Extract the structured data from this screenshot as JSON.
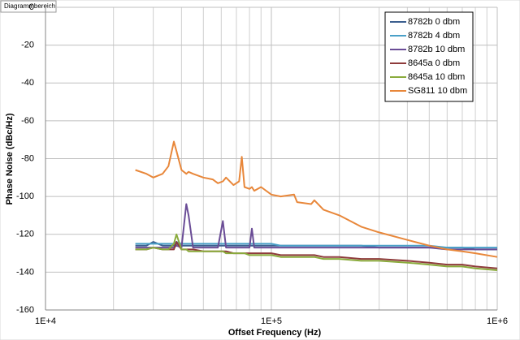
{
  "chart_data": {
    "type": "line",
    "tooltip": "Diagrammbereich",
    "xlabel": "Offset Frequency (Hz)",
    "ylabel": "Phase Noise (dBc/Hz)",
    "xscale": "log",
    "grid": true,
    "legend": "upper right",
    "xlim": [
      10000,
      1000000
    ],
    "ylim": [
      -160,
      0
    ],
    "xticks": [
      {
        "value": 10000,
        "label": "1E+4"
      },
      {
        "value": 100000,
        "label": "1E+5"
      },
      {
        "value": 1000000,
        "label": "1E+6"
      }
    ],
    "xminorticks": [
      20000,
      30000,
      40000,
      50000,
      60000,
      70000,
      80000,
      90000,
      200000,
      300000,
      400000,
      500000,
      600000,
      700000,
      800000,
      900000
    ],
    "yticks": [
      0,
      -20,
      -40,
      -60,
      -80,
      -100,
      -120,
      -140,
      -160
    ],
    "x": [
      25000,
      28000,
      30000,
      33000,
      35000,
      37000,
      38000,
      40000,
      42000,
      43000,
      45000,
      50000,
      55000,
      58000,
      61000,
      63000,
      68000,
      72000,
      74000,
      76000,
      80000,
      82000,
      84000,
      90000,
      100000,
      110000,
      126000,
      130000,
      150000,
      155000,
      170000,
      200000,
      250000,
      300000,
      400000,
      500000,
      600000,
      700000,
      800000,
      1000000
    ],
    "series": [
      {
        "name": "8782b 0 dbm",
        "color": "#3c5f8f",
        "values": [
          -126,
          -126,
          -124,
          -126,
          -126,
          -126,
          -125,
          -126,
          -126,
          -126,
          -126,
          -126,
          -126,
          -126,
          -126,
          -126,
          -126,
          -126,
          -126,
          -126,
          -126,
          -126,
          -126,
          -126,
          -126,
          -126,
          -126,
          -126,
          -126,
          -126,
          -126,
          -126,
          -126,
          -127,
          -127,
          -127,
          -127,
          -127,
          -128,
          -128
        ]
      },
      {
        "name": "8782b 4 dbm",
        "color": "#4aa0c8",
        "values": [
          -125,
          -125,
          -125,
          -125,
          -125,
          -125,
          -124,
          -125,
          -125,
          -125,
          -125,
          -125,
          -125,
          -125,
          -125,
          -125,
          -125,
          -125,
          -125,
          -125,
          -125,
          -125,
          -125,
          -125,
          -125,
          -126,
          -126,
          -126,
          -126,
          -126,
          -126,
          -126,
          -126,
          -126,
          -126,
          -126,
          -127,
          -127,
          -127,
          -127
        ]
      },
      {
        "name": "8782b 10 dbm",
        "color": "#6a4c96",
        "values": [
          -127,
          -127,
          -127,
          -127,
          -127,
          -127,
          -126,
          -127,
          -104,
          -110,
          -127,
          -127,
          -127,
          -127,
          -113,
          -127,
          -127,
          -127,
          -127,
          -127,
          -127,
          -117,
          -127,
          -127,
          -127,
          -127,
          -127,
          -127,
          -127,
          -127,
          -127,
          -127,
          -127,
          -127,
          -127,
          -127,
          -128,
          -128,
          -128,
          -128
        ]
      },
      {
        "name": "8645a 0 dbm",
        "color": "#8e3b3b",
        "values": [
          -128,
          -128,
          -127,
          -128,
          -128,
          -128,
          -124,
          -128,
          -128,
          -128,
          -128,
          -129,
          -129,
          -129,
          -129,
          -129,
          -130,
          -130,
          -130,
          -130,
          -130,
          -130,
          -130,
          -130,
          -130,
          -131,
          -131,
          -131,
          -131,
          -131,
          -132,
          -132,
          -133,
          -133,
          -134,
          -135,
          -136,
          -136,
          -137,
          -138
        ]
      },
      {
        "name": "8645a 10 dbm",
        "color": "#8aab3c",
        "values": [
          -128,
          -128,
          -127,
          -128,
          -128,
          -125,
          -120,
          -128,
          -128,
          -129,
          -129,
          -129,
          -129,
          -129,
          -129,
          -130,
          -130,
          -130,
          -130,
          -130,
          -131,
          -131,
          -131,
          -131,
          -131,
          -132,
          -132,
          -132,
          -132,
          -132,
          -133,
          -133,
          -134,
          -134,
          -135,
          -136,
          -137,
          -137,
          -138,
          -139
        ]
      },
      {
        "name": "SG811 10 dbm",
        "color": "#e8873a",
        "values": [
          -86,
          -88,
          -90,
          -88,
          -84,
          -71,
          -76,
          -86,
          -88,
          -87,
          -88,
          -90,
          -91,
          -93,
          -92,
          -90,
          -94,
          -92,
          -79,
          -95,
          -96,
          -95,
          -97,
          -95,
          -99,
          -100,
          -99,
          -103,
          -104,
          -102,
          -107,
          -110,
          -116,
          -119,
          -123,
          -126,
          -128,
          -129,
          -130,
          -132
        ]
      }
    ]
  }
}
